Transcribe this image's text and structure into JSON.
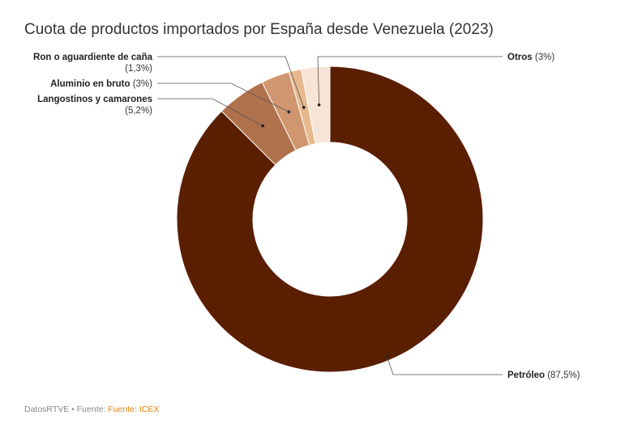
{
  "chart_data": {
    "type": "pie",
    "title": "Cuota de productos importados por España desde Venezuela (2023)",
    "slices": [
      {
        "label": "Petróleo",
        "value": 87.5,
        "value_label": "(87,5%)",
        "color": "#5a1e00"
      },
      {
        "label": "Langostinos y camarones",
        "value": 5.2,
        "value_label": "(5,2%)",
        "color": "#b0714d"
      },
      {
        "label": "Aluminio en bruto",
        "value": 3,
        "value_label": "(3%)",
        "color": "#cf966f"
      },
      {
        "label": "Ron o aguardiente de caña",
        "value": 1.3,
        "value_label": "(1,3%)",
        "color": "#e8b88e"
      },
      {
        "label": "Otros",
        "value": 3,
        "value_label": "(3%)",
        "color": "#f6e4d6"
      }
    ]
  },
  "footer": {
    "brand": "DatosRTVE",
    "separator": " • Fuente: ",
    "source": "Fuente: ICEX"
  }
}
